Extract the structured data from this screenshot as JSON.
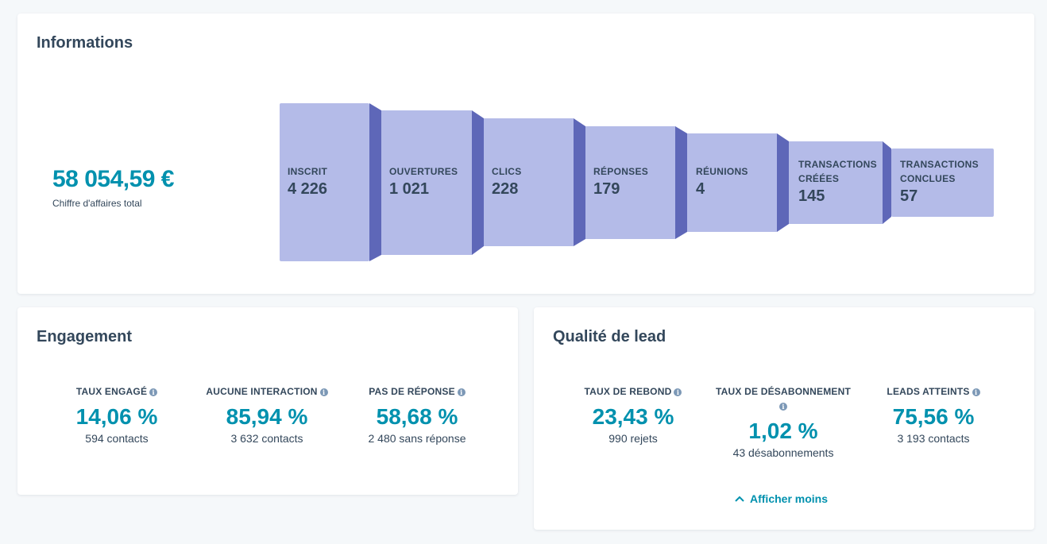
{
  "info": {
    "title": "Informations",
    "revenue": "58 054,59 €",
    "revenue_label": "Chiffre d'affaires total",
    "stages": [
      {
        "label": "INSCRIT",
        "value": "4 226"
      },
      {
        "label": "OUVERTURES",
        "value": "1 021"
      },
      {
        "label": "CLICS",
        "value": "228"
      },
      {
        "label": "RÉPONSES",
        "value": "179"
      },
      {
        "label": "RÉUNIONS",
        "value": "4"
      },
      {
        "label": "TRANSACTIONS CRÉÉES",
        "value": "145"
      },
      {
        "label": "TRANSACTIONS CONCLUES",
        "value": "57"
      }
    ],
    "colors": {
      "front": "#b4bbe8",
      "side": "#5e67b8"
    }
  },
  "engagement": {
    "title": "Engagement",
    "metrics": [
      {
        "label": "TAUX ENGAGÉ",
        "value": "14,06 %",
        "sub": "594 contacts"
      },
      {
        "label": "AUCUNE INTERACTION",
        "value": "85,94 %",
        "sub": "3 632 contacts"
      },
      {
        "label": "PAS DE RÉPONSE",
        "value": "58,68 %",
        "sub": "2 480 sans réponse"
      }
    ]
  },
  "lead": {
    "title": "Qualité de lead",
    "metrics": [
      {
        "label": "TAUX DE REBOND",
        "value": "23,43 %",
        "sub": "990 rejets"
      },
      {
        "label": "TAUX DE DÉSABONNEMENT",
        "value": "1,02 %",
        "sub": "43 désabonnements"
      },
      {
        "label": "LEADS ATTEINTS",
        "value": "75,56 %",
        "sub": "3 193 contacts"
      }
    ],
    "toggle_label": "Afficher moins"
  },
  "icons": {
    "info": "info-icon",
    "chevron": "chevron-up-icon"
  }
}
